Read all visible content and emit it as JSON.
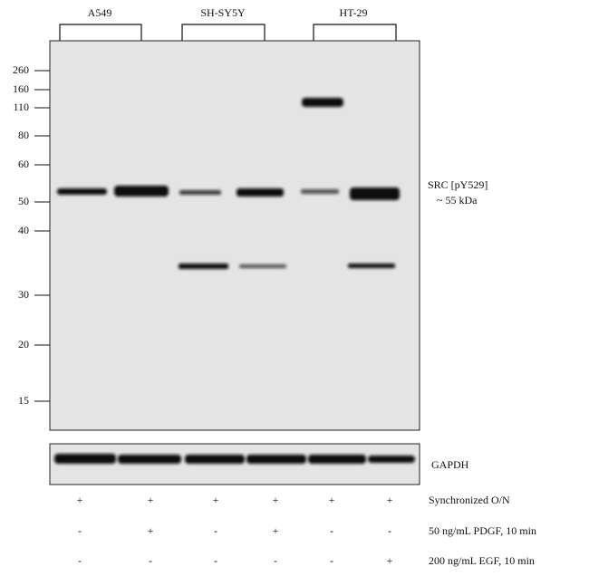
{
  "cell_lines": [
    "A549",
    "SH-SY5Y",
    "HT-29"
  ],
  "markers": [
    260,
    160,
    110,
    80,
    60,
    50,
    40,
    30,
    20,
    15
  ],
  "band_label": {
    "name": "SRC [pY529]",
    "size": "~ 55 kDa"
  },
  "loading_control": "GAPDH",
  "conditions": [
    {
      "label": "Synchronized O/N",
      "lanes": [
        "+",
        "+",
        "+",
        "+",
        "+",
        "+"
      ]
    },
    {
      "label": "50 ng/mL PDGF, 10 min",
      "lanes": [
        "-",
        "+",
        "-",
        "+",
        "-",
        "-"
      ]
    },
    {
      "label": "200 ng/mL EGF, 10 min",
      "lanes": [
        "-",
        "-",
        "-",
        "-",
        "-",
        "+"
      ]
    }
  ]
}
